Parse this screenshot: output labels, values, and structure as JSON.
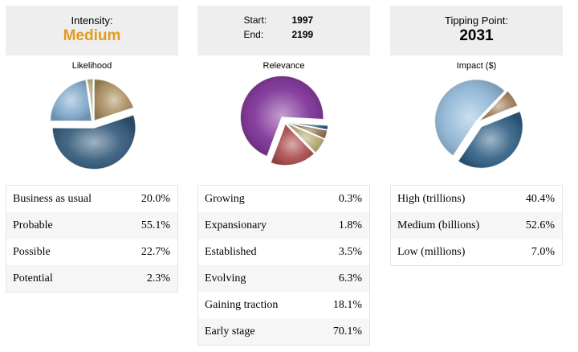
{
  "intensity": {
    "label": "Intensity:",
    "value": "Medium",
    "accent": "#E39C1E"
  },
  "range": {
    "start_label": "Start:",
    "start_value": "1997",
    "end_label": "End:",
    "end_value": "2199"
  },
  "tipping": {
    "label": "Tipping Point:",
    "value": "2031"
  },
  "likelihood": {
    "title": "Likelihood",
    "rows": [
      {
        "label": "Business as usual",
        "value": "20.0%"
      },
      {
        "label": "Probable",
        "value": "55.1%"
      },
      {
        "label": "Possible",
        "value": "22.7%"
      },
      {
        "label": "Potential",
        "value": "2.3%"
      }
    ]
  },
  "relevance": {
    "title": "Relevance",
    "rows": [
      {
        "label": "Growing",
        "value": "0.3%"
      },
      {
        "label": "Expansionary",
        "value": "1.8%"
      },
      {
        "label": "Established",
        "value": "3.5%"
      },
      {
        "label": "Evolving",
        "value": "6.3%"
      },
      {
        "label": "Gaining traction",
        "value": "18.1%"
      },
      {
        "label": "Early stage",
        "value": "70.1%"
      }
    ]
  },
  "impact": {
    "title": "Impact ($)",
    "rows": [
      {
        "label": "High (trillions)",
        "value": "40.4%"
      },
      {
        "label": "Medium (billions)",
        "value": "52.6%"
      },
      {
        "label": "Low (millions)",
        "value": "7.0%"
      }
    ]
  },
  "chart_data": [
    {
      "type": "pie",
      "title": "Likelihood",
      "categories": [
        "Business as usual",
        "Probable",
        "Possible",
        "Potential"
      ],
      "values": [
        20.0,
        55.1,
        22.7,
        2.3
      ],
      "colors": [
        "#A68A5B",
        "#2E5677",
        "#7FA9CC",
        "#B9AE72"
      ],
      "exploded": [
        "Probable"
      ]
    },
    {
      "type": "pie",
      "title": "Relevance",
      "categories": [
        "Growing",
        "Expansionary",
        "Established",
        "Evolving",
        "Gaining traction",
        "Early stage"
      ],
      "values": [
        0.3,
        1.8,
        3.5,
        6.3,
        18.1,
        70.1
      ],
      "colors": [
        "#4F8AB0",
        "#1E4E70",
        "#8A6E4E",
        "#B3A36A",
        "#A84747",
        "#7A2C93"
      ],
      "exploded": [
        "Early stage"
      ]
    },
    {
      "type": "pie",
      "title": "Impact ($)",
      "categories": [
        "High (trillions)",
        "Medium (billions)",
        "Low (millions)"
      ],
      "values": [
        40.4,
        52.6,
        7.0
      ],
      "colors": [
        "#2D5D82",
        "#8FB7D8",
        "#9B7A55"
      ],
      "exploded": [
        "High (trillions)"
      ]
    }
  ]
}
